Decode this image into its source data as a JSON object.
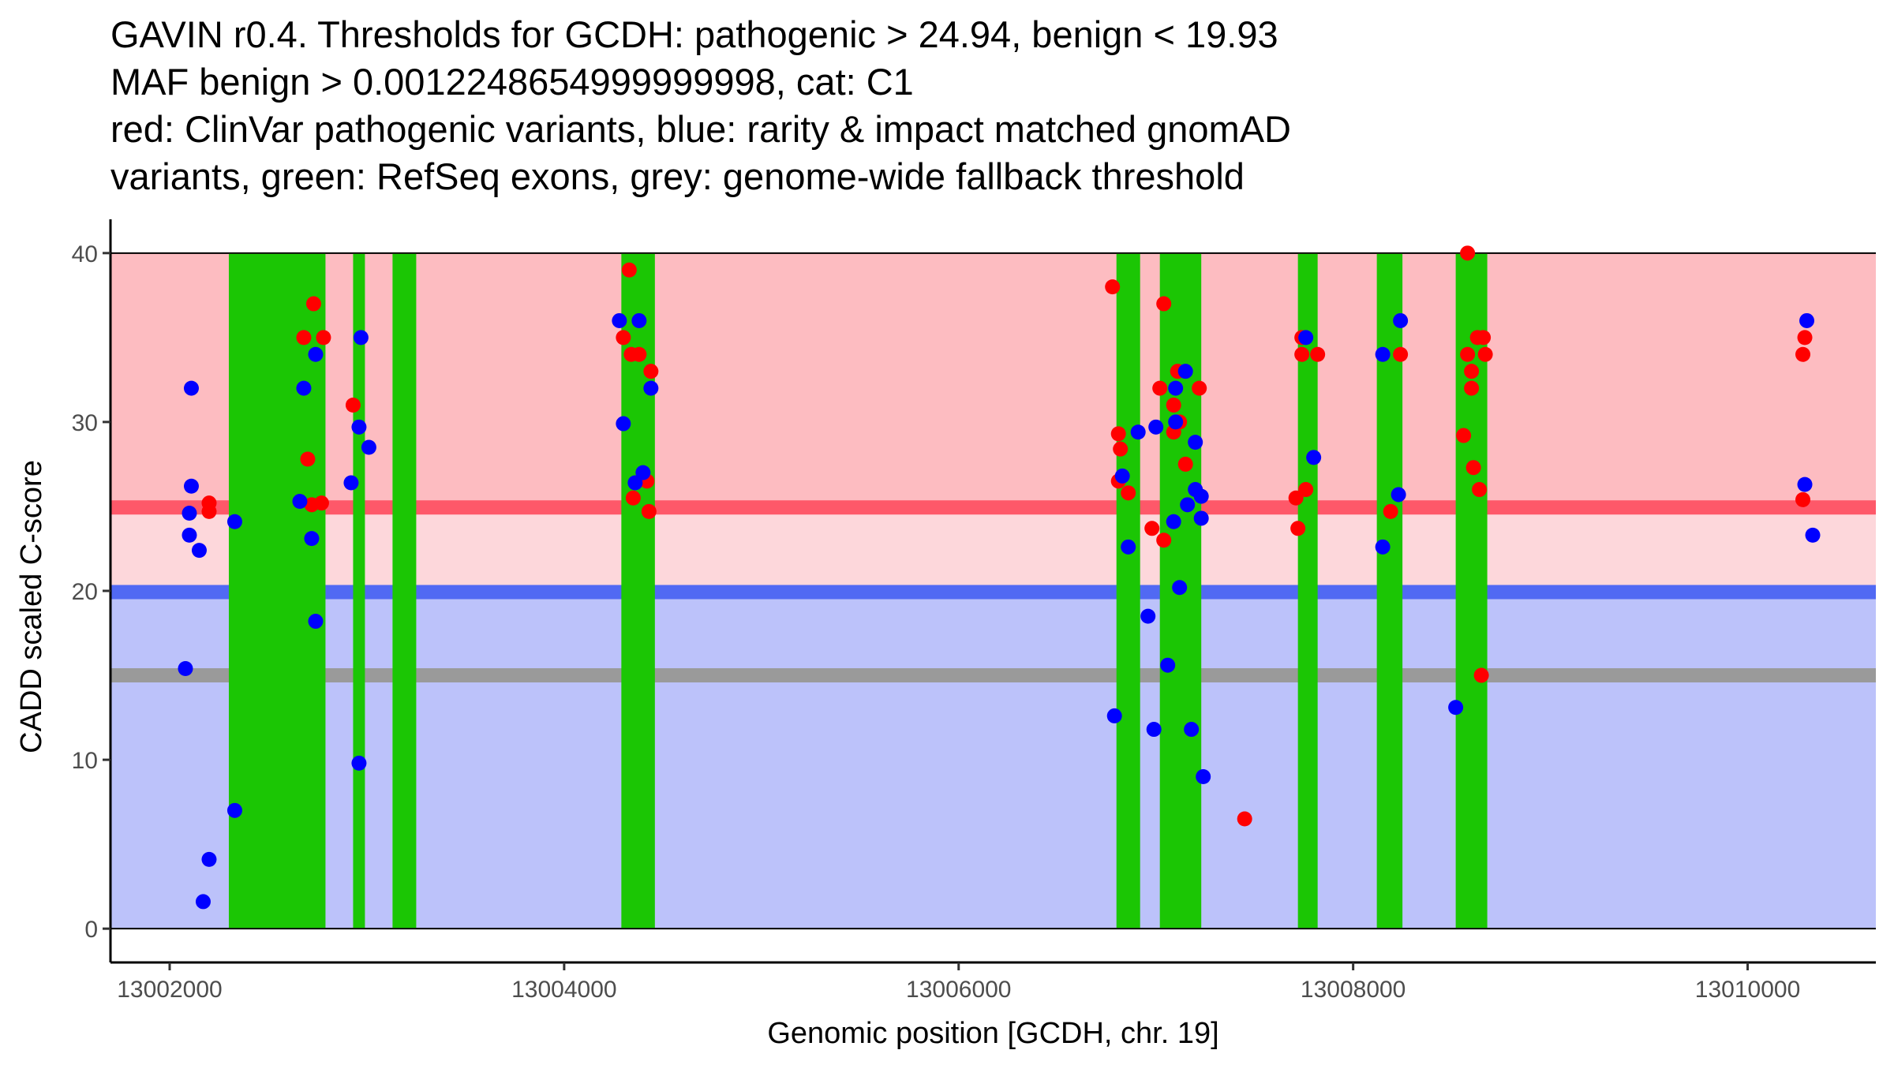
{
  "chart_data": {
    "type": "scatter",
    "title_lines": [
      "GAVIN r0.4. Thresholds for GCDH: pathogenic > 24.94, benign < 19.93",
      "MAF benign > 0.0012248654999999998, cat: C1",
      "red: ClinVar pathogenic variants, blue: rarity & impact matched gnomAD",
      "variants, green: RefSeq exons, grey: genome-wide fallback threshold"
    ],
    "xlabel": "Genomic position [GCDH, chr. 19]",
    "ylabel": "CADD scaled C-score",
    "xlim": [
      13001700,
      13010650
    ],
    "ylim": [
      -2,
      42
    ],
    "x_ticks": [
      13002000,
      13004000,
      13006000,
      13008000,
      13010000
    ],
    "x_tick_labels": [
      "13002000",
      "13004000",
      "13006000",
      "13008000",
      "13010000"
    ],
    "y_ticks": [
      0,
      10,
      20,
      30,
      40
    ],
    "y_tick_labels": [
      "0",
      "10",
      "20",
      "30",
      "40"
    ],
    "grid": false,
    "thresholds": {
      "pathogenic": 24.94,
      "benign": 19.93,
      "genome_wide_fallback": 15
    },
    "regions": {
      "pathogenic_zone": [
        24.94,
        40
      ],
      "grey_zone": [
        19.93,
        24.94
      ],
      "benign_zone": [
        0,
        19.93
      ]
    },
    "colors": {
      "pathogenic_zone": "#fdbcc1",
      "grey_zone": "#fdd7db",
      "benign_zone": "#bcc2fa",
      "pathogenic_line": "#fe5869",
      "benign_line": "#5169f3",
      "fallback_line": "#9a9a9a",
      "exon": "#1bc604",
      "clinvar": "#ff0000",
      "gnomad": "#0000ff"
    },
    "exons": [
      [
        13002300,
        13002790
      ],
      [
        13002930,
        13002990
      ],
      [
        13003130,
        13003250
      ],
      [
        13004290,
        13004460
      ],
      [
        13006800,
        13006920
      ],
      [
        13007020,
        13007230
      ],
      [
        13007720,
        13007820
      ],
      [
        13008120,
        13008250
      ],
      [
        13008520,
        13008680
      ]
    ],
    "series": [
      {
        "name": "ClinVar pathogenic",
        "color": "#ff0000",
        "points": [
          [
            13002200,
            25.2
          ],
          [
            13002200,
            24.7
          ],
          [
            13002680,
            35.0
          ],
          [
            13002730,
            37.0
          ],
          [
            13002780,
            35.0
          ],
          [
            13002700,
            27.8
          ],
          [
            13002720,
            25.1
          ],
          [
            13002770,
            25.2
          ],
          [
            13002930,
            31.0
          ],
          [
            13004300,
            35.0
          ],
          [
            13004340,
            34.0
          ],
          [
            13004380,
            34.0
          ],
          [
            13004330,
            39.0
          ],
          [
            13004440,
            33.0
          ],
          [
            13004350,
            25.5
          ],
          [
            13004400,
            26.6
          ],
          [
            13004420,
            26.5
          ],
          [
            13004430,
            24.7
          ],
          [
            13006780,
            38.0
          ],
          [
            13006810,
            29.3
          ],
          [
            13006820,
            28.4
          ],
          [
            13006810,
            26.5
          ],
          [
            13006860,
            25.8
          ],
          [
            13007040,
            37.0
          ],
          [
            13007020,
            32.0
          ],
          [
            13007090,
            31.0
          ],
          [
            13007110,
            33.0
          ],
          [
            13007090,
            29.4
          ],
          [
            13007120,
            30.0
          ],
          [
            13007150,
            27.5
          ],
          [
            13007220,
            32.0
          ],
          [
            13006980,
            23.7
          ],
          [
            13007040,
            23.0
          ],
          [
            13007450,
            6.5
          ],
          [
            13007710,
            25.5
          ],
          [
            13007720,
            23.7
          ],
          [
            13007740,
            35.0
          ],
          [
            13007740,
            34.0
          ],
          [
            13007760,
            26.0
          ],
          [
            13007820,
            34.0
          ],
          [
            13008190,
            24.7
          ],
          [
            13008240,
            34.0
          ],
          [
            13008580,
            40.0
          ],
          [
            13008560,
            29.2
          ],
          [
            13008580,
            34.0
          ],
          [
            13008600,
            32.0
          ],
          [
            13008600,
            33.0
          ],
          [
            13008610,
            27.3
          ],
          [
            13008630,
            35.0
          ],
          [
            13008640,
            26.0
          ],
          [
            13008660,
            35.0
          ],
          [
            13008670,
            34.0
          ],
          [
            13008650,
            15.0
          ],
          [
            13010280,
            34.0
          ],
          [
            13010290,
            35.0
          ],
          [
            13010280,
            25.4
          ]
        ]
      },
      {
        "name": "gnomAD matched",
        "color": "#0000ff",
        "points": [
          [
            13002110,
            32.0
          ],
          [
            13002110,
            26.2
          ],
          [
            13002100,
            24.6
          ],
          [
            13002100,
            23.3
          ],
          [
            13002150,
            22.4
          ],
          [
            13002080,
            15.4
          ],
          [
            13002200,
            4.1
          ],
          [
            13002170,
            1.6
          ],
          [
            13002330,
            24.1
          ],
          [
            13002330,
            7.0
          ],
          [
            13002680,
            32.0
          ],
          [
            13002740,
            34.0
          ],
          [
            13002660,
            25.3
          ],
          [
            13002720,
            23.1
          ],
          [
            13002740,
            18.2
          ],
          [
            13002970,
            35.0
          ],
          [
            13002960,
            29.7
          ],
          [
            13003010,
            28.5
          ],
          [
            13002920,
            26.4
          ],
          [
            13002960,
            9.8
          ],
          [
            13004280,
            36.0
          ],
          [
            13004380,
            36.0
          ],
          [
            13004300,
            29.9
          ],
          [
            13004440,
            32.0
          ],
          [
            13004360,
            26.4
          ],
          [
            13004400,
            27.0
          ],
          [
            13006830,
            26.8
          ],
          [
            13006910,
            29.4
          ],
          [
            13006860,
            22.6
          ],
          [
            13006960,
            18.5
          ],
          [
            13006790,
            12.6
          ],
          [
            13007000,
            29.7
          ],
          [
            13007100,
            32.0
          ],
          [
            13007150,
            33.0
          ],
          [
            13007100,
            30.0
          ],
          [
            13007090,
            24.1
          ],
          [
            13007160,
            25.1
          ],
          [
            13007200,
            28.8
          ],
          [
            13007200,
            26.0
          ],
          [
            13007230,
            25.6
          ],
          [
            13007230,
            24.3
          ],
          [
            13007120,
            20.2
          ],
          [
            13007060,
            15.6
          ],
          [
            13006990,
            11.8
          ],
          [
            13007180,
            11.8
          ],
          [
            13007240,
            9.0
          ],
          [
            13007760,
            35.0
          ],
          [
            13007800,
            27.9
          ],
          [
            13008150,
            34.0
          ],
          [
            13008150,
            22.6
          ],
          [
            13008240,
            36.0
          ],
          [
            13008230,
            25.7
          ],
          [
            13008520,
            13.1
          ],
          [
            13010300,
            36.0
          ],
          [
            13010290,
            26.3
          ],
          [
            13010330,
            23.3
          ]
        ]
      }
    ]
  }
}
